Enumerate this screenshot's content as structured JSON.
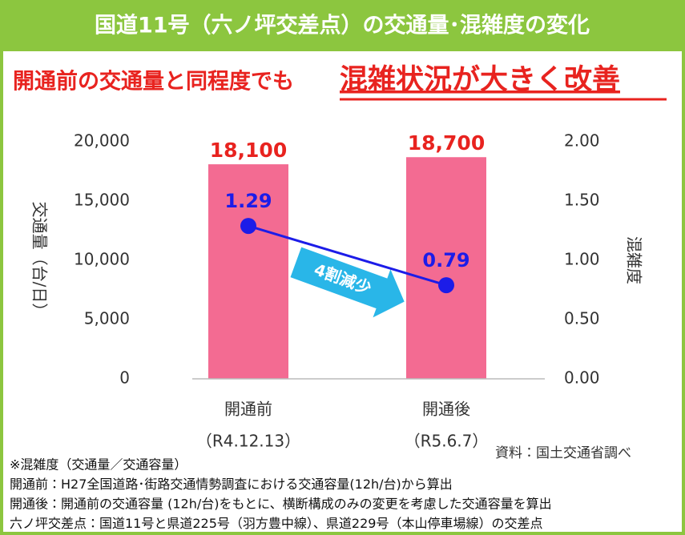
{
  "chart_data": {
    "type": "bar",
    "title": "国道11号（六ノ坪交差点）の交通量･混雑度の変化",
    "subtitle": "開通前の交通量と同程度でも",
    "subtitle_emphasis": "混雑状況が大きく改善",
    "categories": [
      "開通前",
      "開通後"
    ],
    "category_sublabels": [
      "（R4.12.13）",
      "（R5.6.7）"
    ],
    "ylabel": "交通量（台/日）",
    "y2label": "混雑度",
    "series": [
      {
        "type": "bar",
        "color": "#f36b92",
        "label_color": "#e8231f",
        "values": [
          18100,
          18700
        ],
        "value_labels": [
          "18,100",
          "18,700"
        ]
      },
      {
        "type": "line",
        "axis": "y2",
        "color": "#1c1ce8",
        "values": [
          1.29,
          0.79
        ]
      }
    ],
    "ylim": [
      0,
      20000
    ],
    "yticks": [
      0,
      {
        "value": 5000,
        "label": "5,000"
      },
      {
        "value": 10000,
        "label": "10,000"
      },
      {
        "value": 15000,
        "label": "15,000"
      },
      {
        "value": 20000,
        "label": "20,000"
      }
    ],
    "y2lim": [
      0,
      2
    ],
    "y2ticks": [
      {
        "value": 0,
        "label": "0.00"
      },
      {
        "value": 0.5,
        "label": "0.50"
      },
      {
        "value": 1,
        "label": "1.00"
      },
      {
        "value": 1.5,
        "label": "1.50"
      },
      {
        "value": 2,
        "label": "2.00"
      }
    ],
    "annotation": "4割減少",
    "source": "資料：国土交通省調べ",
    "notes": [
      "※混雑度（交通量／交通容量）",
      "開通前：H27全国道路･街路交通情勢調査における交通容量(12h/台)から算出",
      "開通後：開通前の交通容量 (12h/台)をもとに、横断構成のみの変更を考慮した交通容量を算出",
      "六ノ坪交差点：国道11号と県道225号（羽方豊中線）、県道229号（本山停車場線）の交差点"
    ]
  }
}
